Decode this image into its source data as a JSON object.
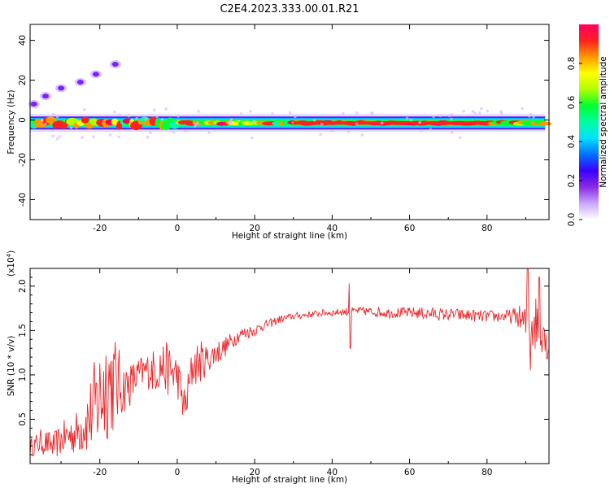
{
  "title": "C2E4.2023.333.00.01.R21",
  "chart_data": [
    {
      "type": "heatmap",
      "xlabel": "Height of straight line (km)",
      "ylabel": "Frequency (Hz)",
      "xlim": [
        -38,
        96
      ],
      "ylim": [
        -50,
        48
      ],
      "xticks": [
        -20,
        0,
        20,
        40,
        60,
        80
      ],
      "yticks": [
        40,
        20,
        0,
        -20,
        -40
      ],
      "ytick_labels": [
        "40",
        "20",
        "0",
        "-20",
        "-40"
      ],
      "grid": false,
      "colorbar": {
        "label": "Normalized spectral amplitude",
        "range": [
          0.0,
          1.0
        ],
        "ticks": [
          0.0,
          0.2,
          0.4,
          0.6,
          0.8
        ],
        "tick_labels": [
          "0.0",
          "0.2",
          "0.4",
          "0.6",
          "0.8"
        ],
        "colormap": [
          "#ffffff",
          "#c9a8ff",
          "#8a2be2",
          "#3a00ff",
          "#0070ff",
          "#00e0ff",
          "#00ffa0",
          "#00ff30",
          "#b0ff00",
          "#ffff00",
          "#ff9900",
          "#ff2020",
          "#ff0060"
        ]
      },
      "features": [
        {
          "name": "main band",
          "x_range": [
            -38,
            95
          ],
          "freq": -1.5,
          "half_width_hz": 3
        },
        {
          "name": "upper trace",
          "points": [
            [
              -37,
              8
            ],
            [
              -34,
              12
            ],
            [
              -30,
              16
            ],
            [
              -25,
              19
            ],
            [
              -21,
              23
            ],
            [
              -16,
              28
            ]
          ]
        }
      ]
    },
    {
      "type": "line",
      "xlabel": "Height of straight line (km)",
      "ylabel": "SNR (10 * v/v)",
      "y_multiplier_text": "(x10",
      "y_multiplier_exp": "4",
      "y_multiplier_close": ")",
      "xlim": [
        -38,
        96
      ],
      "ylim": [
        0,
        2.2
      ],
      "xticks": [
        -20,
        0,
        20,
        40,
        60,
        80
      ],
      "yticks": [
        0.5,
        1.0,
        1.5,
        2.0
      ],
      "ytick_labels": [
        "0.5",
        "1.0",
        "1.5",
        "2.0"
      ],
      "grid": false,
      "line_color": "#e8282a",
      "series": [
        {
          "x": [
            -38,
            -35,
            -32,
            -29,
            -26,
            -23,
            -20,
            -18,
            -16,
            -14,
            -12,
            -10,
            -8,
            -6,
            -4,
            -2,
            0,
            2,
            4,
            6,
            8,
            10,
            12,
            14,
            16,
            18,
            20,
            22,
            24,
            26,
            28,
            30,
            32,
            34,
            36,
            38,
            40,
            42,
            44,
            46,
            48,
            50,
            52,
            54,
            56,
            58,
            60,
            62,
            64,
            66,
            68,
            70,
            72,
            74,
            76,
            78,
            80,
            82,
            84,
            86,
            88,
            90,
            92,
            94,
            96
          ],
          "y": [
            0.18,
            0.25,
            0.2,
            0.3,
            0.35,
            0.5,
            0.75,
            0.95,
            0.9,
            0.85,
            0.9,
            1.0,
            1.05,
            1.05,
            1.1,
            1.05,
            1.0,
            0.6,
            1.1,
            1.15,
            1.18,
            1.25,
            1.3,
            1.38,
            1.45,
            1.48,
            1.5,
            1.55,
            1.58,
            1.62,
            1.64,
            1.66,
            1.67,
            1.68,
            1.69,
            1.7,
            1.7,
            1.71,
            1.71,
            1.72,
            1.72,
            1.71,
            1.71,
            1.7,
            1.7,
            1.7,
            1.7,
            1.7,
            1.69,
            1.69,
            1.68,
            1.68,
            1.68,
            1.67,
            1.67,
            1.66,
            1.66,
            1.66,
            1.66,
            1.66,
            1.66,
            1.55,
            1.6,
            1.55,
            1.5
          ],
          "noise": [
            0.1,
            0.15,
            0.15,
            0.2,
            0.25,
            0.4,
            0.65,
            0.7,
            0.55,
            0.3,
            0.25,
            0.2,
            0.2,
            0.25,
            0.3,
            0.3,
            0.25,
            0.25,
            0.25,
            0.25,
            0.15,
            0.15,
            0.12,
            0.1,
            0.08,
            0.08,
            0.06,
            0.06,
            0.05,
            0.05,
            0.04,
            0.04,
            0.04,
            0.04,
            0.04,
            0.04,
            0.04,
            0.04,
            0.05,
            0.04,
            0.05,
            0.05,
            0.06,
            0.06,
            0.06,
            0.06,
            0.06,
            0.07,
            0.07,
            0.07,
            0.07,
            0.07,
            0.07,
            0.07,
            0.07,
            0.07,
            0.07,
            0.07,
            0.07,
            0.08,
            0.12,
            0.25,
            0.35,
            0.3,
            0.25
          ]
        }
      ],
      "spikes": [
        [
          44.5,
          2.03
        ],
        [
          44.7,
          1.3
        ],
        [
          90.5,
          2.25
        ],
        [
          91.2,
          1.05
        ],
        [
          93.5,
          2.1
        ],
        [
          95.5,
          1.18
        ]
      ]
    }
  ]
}
